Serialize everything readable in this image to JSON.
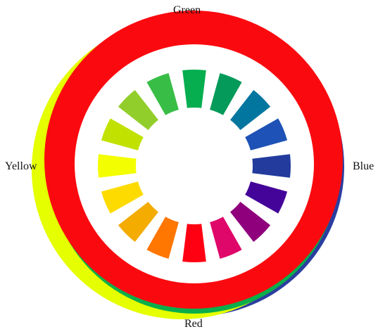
{
  "labels": {
    "green": "Green",
    "blue": "Blue",
    "red": "Red",
    "yellow": "Yellow"
  },
  "outer_ring_colors": {
    "green": "#0bae4a",
    "blue": "#2b3ea0",
    "red": "#fa0a0f",
    "yellow": "#e5ff00",
    "white": "#ffffff"
  },
  "segments": [
    "#06ae4f",
    "#049a5a",
    "#0376a0",
    "#1e52b6",
    "#223b9d",
    "#44049a",
    "#8f007d",
    "#e0076a",
    "#ff0012",
    "#ff7600",
    "#f4ac00",
    "#fedb00",
    "#f3ff00",
    "#c1e200",
    "#92ce2b",
    "#38be47"
  ]
}
